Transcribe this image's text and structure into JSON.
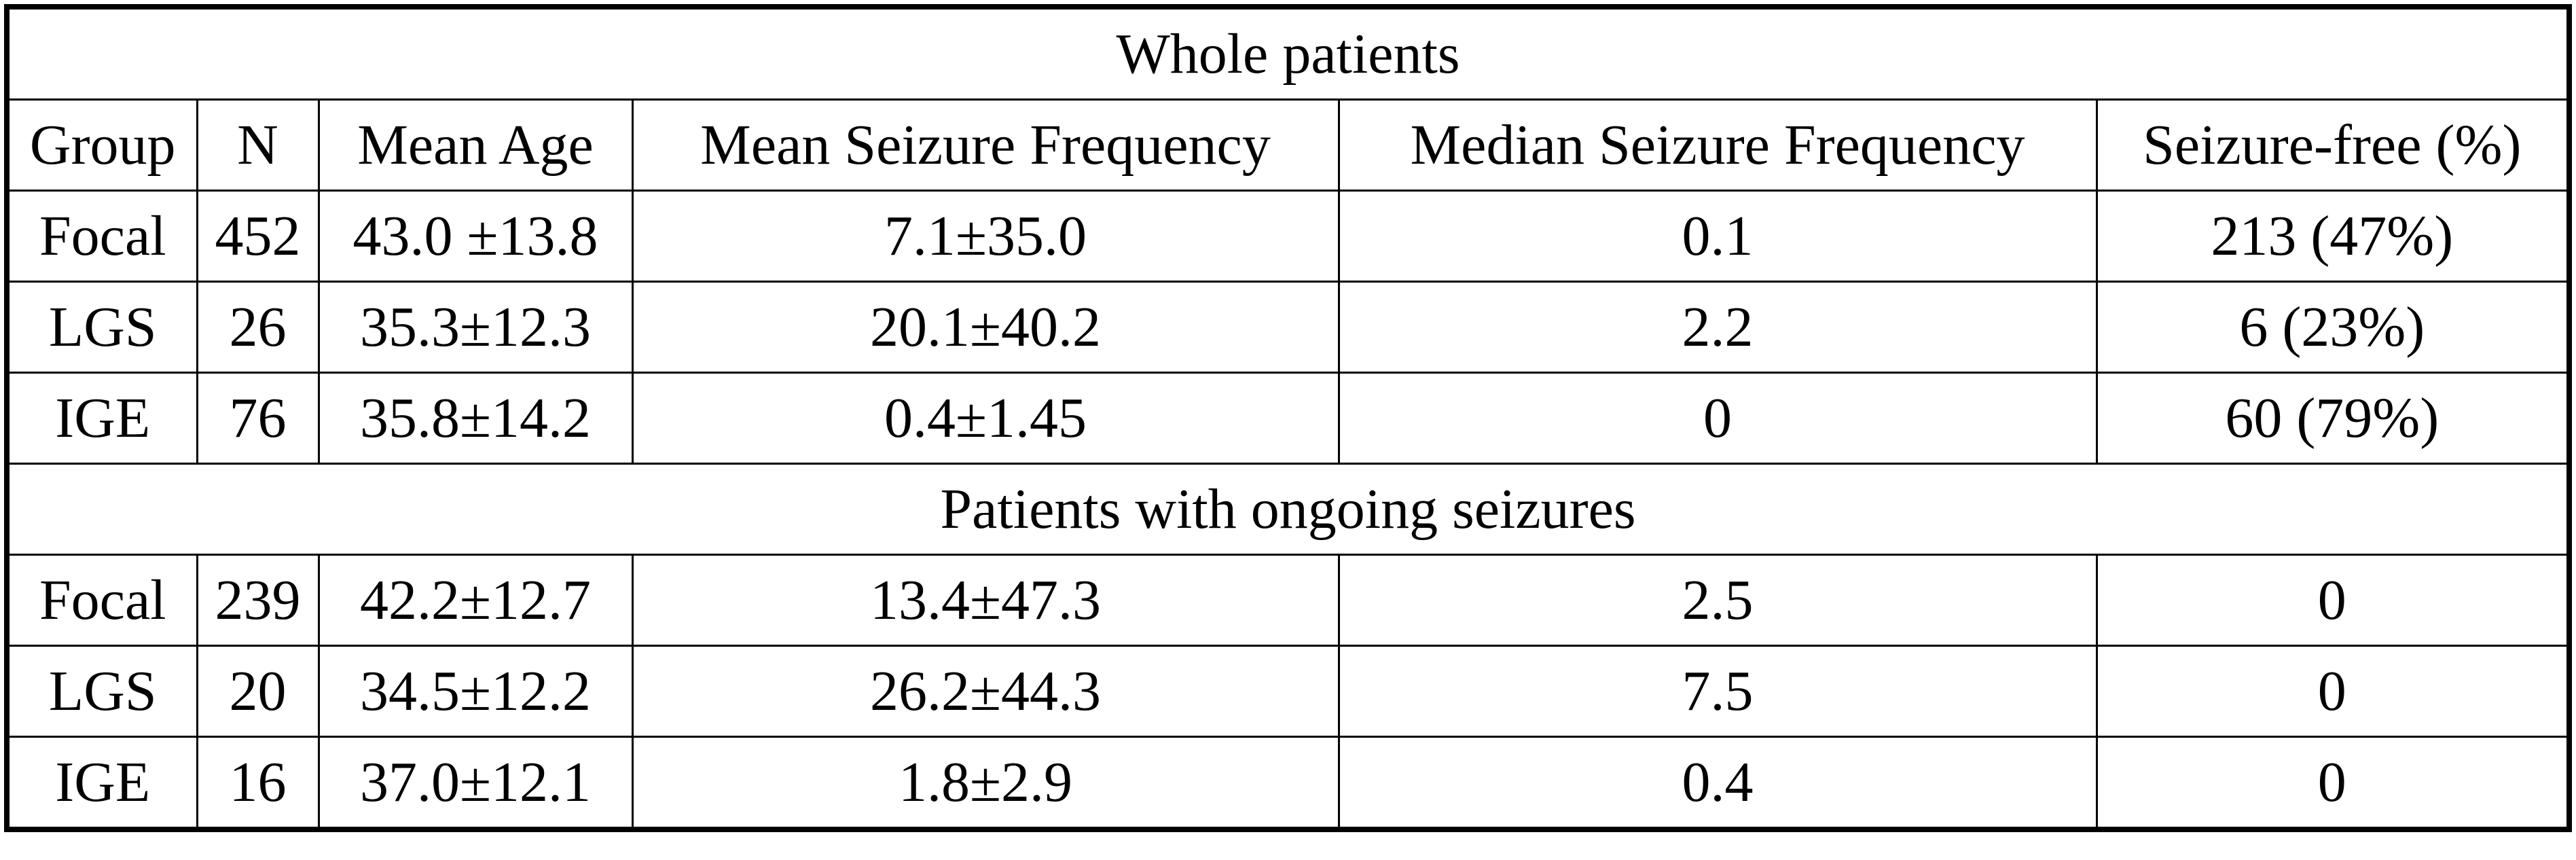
{
  "table": {
    "header": [
      "Group",
      "N",
      "Mean Age",
      "Mean Seizure Frequency",
      "Median Seizure Frequency",
      "Seizure-free (%)"
    ],
    "sections": [
      {
        "title": "Whole patients",
        "rows": [
          [
            "Focal",
            "452",
            "43.0 ±13.8",
            "7.1±35.0",
            "0.1",
            "213 (47%)"
          ],
          [
            "LGS",
            "26",
            "35.3±12.3",
            "20.1±40.2",
            "2.2",
            "6 (23%)"
          ],
          [
            "IGE",
            "76",
            "35.8±14.2",
            "0.4±1.45",
            "0",
            "60 (79%)"
          ]
        ]
      },
      {
        "title": "Patients with ongoing seizures",
        "rows": [
          [
            "Focal",
            "239",
            "42.2±12.7",
            "13.4±47.3",
            "2.5",
            "0"
          ],
          [
            "LGS",
            "20",
            "34.5±12.2",
            "26.2±44.3",
            "7.5",
            "0"
          ],
          [
            "IGE",
            "16",
            "37.0±12.1",
            "1.8±2.9",
            "0.4",
            "0"
          ]
        ]
      }
    ]
  }
}
